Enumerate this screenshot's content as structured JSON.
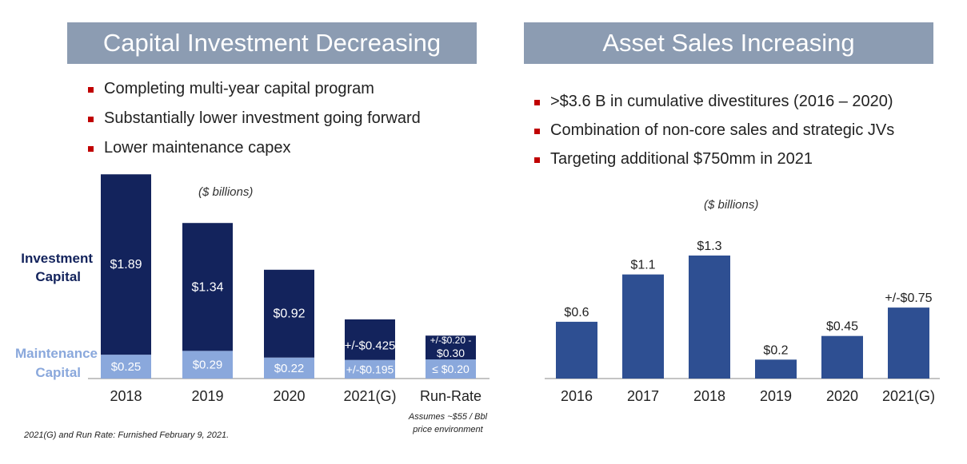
{
  "left_panel": {
    "title": "Capital Investment Decreasing",
    "bullets": [
      "Completing multi-year capital program",
      "Substantially lower investment going forward",
      "Lower maintenance capex"
    ],
    "unit_label": "($ billions)",
    "investment_label": [
      "Investment",
      "Capital"
    ],
    "maintenance_label": [
      "Maintenance",
      "Capital"
    ],
    "runrate_note": [
      "Assumes ~$55 / Bbl",
      "price environment"
    ],
    "footnote": "2021(G) and Run Rate: Furnished February 9, 2021."
  },
  "right_panel": {
    "title": "Asset Sales Increasing",
    "bullets": [
      ">$3.6 B in cumulative divestitures (2016 – 2020)",
      "Combination of non-core sales and strategic JVs",
      "Targeting additional $750mm in 2021"
    ],
    "unit_label": "($ billions)"
  },
  "colors": {
    "investment": "#13235c",
    "maintenance": "#8aa8dc",
    "asset": "#2e4f92",
    "title_bar": "#8c9cb2",
    "bullet": "#c00000"
  },
  "chart_data": [
    {
      "type": "bar",
      "stacked": true,
      "categories": [
        "2018",
        "2019",
        "2020",
        "2021(G)",
        "Run-Rate"
      ],
      "series": [
        {
          "name": "Maintenance Capital",
          "values": [
            0.25,
            0.29,
            0.22,
            0.195,
            0.2
          ],
          "labels": [
            "$0.25",
            "$0.29",
            "$0.22",
            "+/-$0.195",
            "≤ $0.20"
          ]
        },
        {
          "name": "Investment Capital",
          "values": [
            1.89,
            1.34,
            0.92,
            0.425,
            0.25
          ],
          "labels": [
            "$1.89",
            "$1.34",
            "$0.92",
            "+/-$0.425",
            "+/-$0.20 - $0.30"
          ]
        }
      ]
    },
    {
      "type": "bar",
      "categories": [
        "2016",
        "2017",
        "2018",
        "2019",
        "2020",
        "2021(G)"
      ],
      "values": [
        0.6,
        1.1,
        1.3,
        0.2,
        0.45,
        0.75
      ],
      "labels": [
        "$0.6",
        "$1.1",
        "$1.3",
        "$0.2",
        "$0.45",
        "+/-$0.75"
      ]
    }
  ]
}
